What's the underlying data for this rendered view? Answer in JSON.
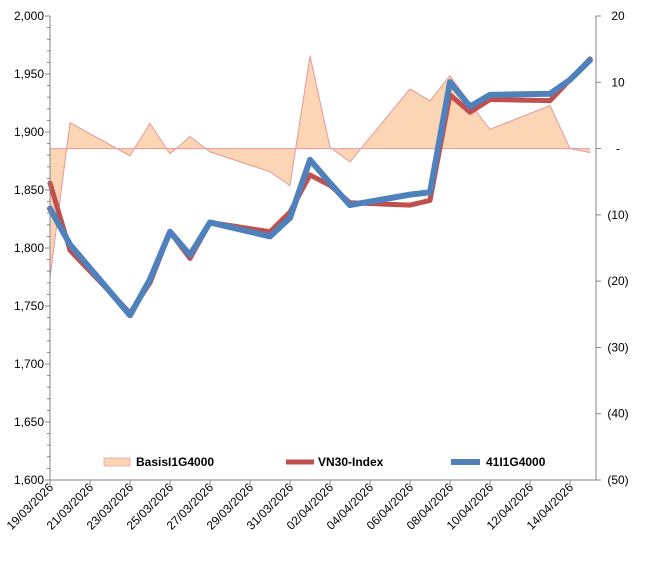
{
  "chart_data": {
    "type": "line",
    "title": "",
    "x": [
      "19/03/2026",
      "20/03/2026",
      "23/03/2026",
      "24/03/2026",
      "25/03/2026",
      "26/03/2026",
      "27/03/2026",
      "30/03/2026",
      "31/03/2026",
      "01/04/2026",
      "02/04/2026",
      "03/04/2026",
      "06/04/2026",
      "07/04/2026",
      "08/04/2026",
      "09/04/2026",
      "10/04/2026",
      "13/04/2026",
      "14/04/2026",
      "15/04/2026"
    ],
    "x_tick_labels": [
      "19/03/2026",
      "21/03/2026",
      "23/03/2026",
      "25/03/2026",
      "27/03/2026",
      "29/03/2026",
      "31/03/2026",
      "02/04/2026",
      "04/04/2026",
      "06/04/2026",
      "08/04/2026",
      "10/04/2026",
      "12/04/2026",
      "14/04/2026"
    ],
    "y_left": {
      "ylim": [
        1600,
        2000
      ],
      "ticks": [
        1600,
        1650,
        1700,
        1750,
        1800,
        1850,
        1900,
        1950,
        2000
      ],
      "tick_labels": [
        "1,600",
        "1,650",
        "1,700",
        "1,750",
        "1,800",
        "1,850",
        "1,900",
        "1,950",
        "2,000"
      ]
    },
    "y_right": {
      "ylim": [
        -50,
        20
      ],
      "ticks": [
        20,
        10,
        0,
        -10,
        -20,
        -30,
        -40,
        -50
      ],
      "tick_labels": [
        "20",
        "10",
        "-",
        "(10)",
        "(20)",
        "(30)",
        "(40)",
        "(50)"
      ]
    },
    "legend_position": "bottom-inside",
    "series": [
      {
        "name": "BasisI1G4000",
        "type": "area",
        "axis": "right",
        "color": "#fcd5b5",
        "line_color": "#e6989a",
        "values": [
          -19.5,
          3.9,
          -1.1,
          3.8,
          -0.8,
          1.8,
          -0.5,
          -3.5,
          -5.6,
          14,
          0.2,
          -2,
          9,
          7.2,
          11,
          6.8,
          2.9,
          6.5,
          0,
          -0.6
        ]
      },
      {
        "name": "VN30-Index",
        "type": "line",
        "axis": "left",
        "color": "#c0504d",
        "values": [
          1856,
          1798,
          1744,
          1770,
          1814,
          1791,
          1822,
          1814,
          1831,
          1863,
          1854,
          1839,
          1837,
          1841,
          1932,
          1917,
          1928,
          1927,
          1945,
          1963
        ]
      },
      {
        "name": "41I1G4000",
        "type": "line",
        "axis": "left",
        "color": "#4f81bd",
        "values": [
          1834,
          1803,
          1742,
          1773,
          1814,
          1794,
          1822,
          1810,
          1826,
          1876,
          1856,
          1837,
          1846,
          1848,
          1943,
          1922,
          1932,
          1933,
          1945,
          1962
        ]
      }
    ]
  }
}
